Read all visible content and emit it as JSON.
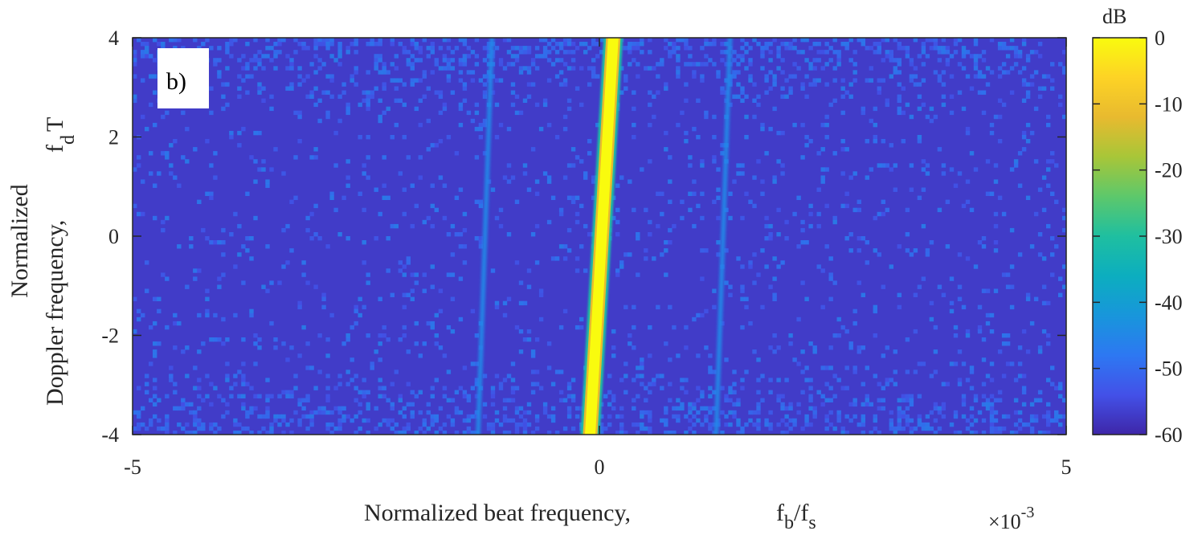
{
  "chart_data": {
    "type": "heatmap",
    "panel_label": "b)",
    "xlabel": {
      "prefix": "Normalized beat frequency,",
      "symbol_main": "f",
      "symbol_sub": "b",
      "symbol_sep": "/f",
      "symbol_sub2": "s"
    },
    "ylabel": {
      "line1": "Normalized",
      "line2": "Doppler frequency,",
      "symbol_main": "f",
      "symbol_sub": "d",
      "symbol_tail": "T"
    },
    "x_multiplier": {
      "base": "×10",
      "exponent": "-3"
    },
    "xlim": [
      -5,
      5
    ],
    "ylim": [
      -4,
      4
    ],
    "x_ticks": [
      -5,
      0,
      5
    ],
    "x_tick_labels": [
      "-5",
      "0",
      "5"
    ],
    "y_ticks": [
      -4,
      -2,
      0,
      2,
      4
    ],
    "y_tick_labels": [
      "-4",
      "-2",
      "0",
      "2",
      "4"
    ],
    "colorbar": {
      "title": "dB",
      "range": [
        -60,
        0
      ],
      "ticks": [
        0,
        -10,
        -20,
        -30,
        -40,
        -50,
        -60
      ],
      "tick_labels": [
        "0",
        "-10",
        "-20",
        "-30",
        "-40",
        "-50",
        "-60"
      ],
      "colormap": "parula"
    },
    "background_level_db": -57,
    "ridges": [
      {
        "name": "main",
        "peak_db": 0,
        "x_at_y_min": -0.1,
        "x_at_y_max": 0.15
      },
      {
        "name": "left-sidelobe",
        "peak_db": -45,
        "x_at_y_min": -1.3,
        "x_at_y_max": -1.15
      },
      {
        "name": "right-sidelobe",
        "peak_db": -45,
        "x_at_y_min": 1.25,
        "x_at_y_max": 1.4
      }
    ],
    "colors": {
      "parula_stops": [
        "#3e26a8",
        "#4351e8",
        "#2d78f2",
        "#1896db",
        "#0caebf",
        "#1fbfa0",
        "#5dc86b",
        "#a8c638",
        "#e8ba2f",
        "#fdd325",
        "#f9fb0e"
      ]
    }
  }
}
